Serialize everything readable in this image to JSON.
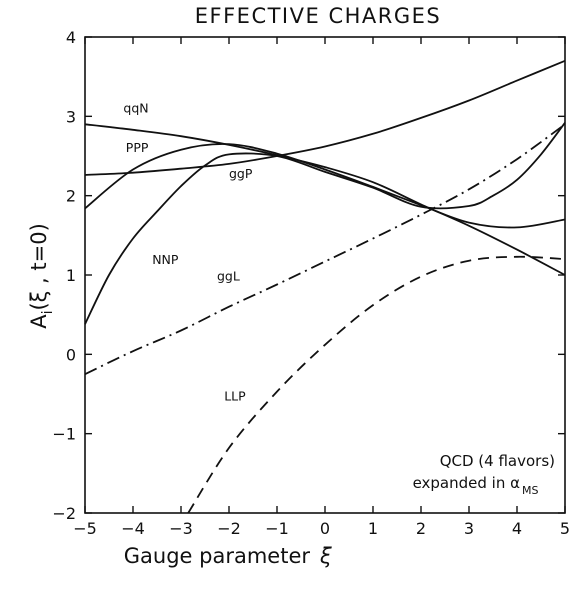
{
  "chart_data": {
    "type": "line",
    "title": "EFFECTIVE CHARGES",
    "xlabel_main": "Gauge parameter",
    "xlabel_symbol": "ξ",
    "ylabel_main": "A",
    "ylabel_sub": "i",
    "ylabel_args": "(ξ , t=0)",
    "xlim": [
      -5,
      5
    ],
    "ylim": [
      -2,
      4
    ],
    "xticks": [
      -5,
      -4,
      -3,
      -2,
      -1,
      0,
      1,
      2,
      3,
      4,
      5
    ],
    "yticks": [
      -2,
      -1,
      0,
      1,
      2,
      3,
      4
    ],
    "grid": false,
    "annotation": {
      "line1": "QCD (4 flavors)",
      "line2_main": "expanded in α",
      "line2_sub": "MS"
    },
    "series": [
      {
        "name": "qqN",
        "style": "solid",
        "x": [
          -5,
          -4,
          -3,
          -2,
          -1,
          0,
          1,
          2,
          3,
          4,
          5
        ],
        "y": [
          2.9,
          2.83,
          2.75,
          2.64,
          2.51,
          2.36,
          2.17,
          1.89,
          1.62,
          1.32,
          1.0
        ]
      },
      {
        "name": "PPP",
        "style": "solid",
        "x": [
          -5,
          -4,
          -3,
          -2,
          -1,
          0,
          1,
          2,
          3,
          4,
          5
        ],
        "y": [
          2.26,
          2.29,
          2.34,
          2.4,
          2.5,
          2.62,
          2.78,
          2.98,
          3.2,
          3.45,
          3.7
        ]
      },
      {
        "name": "ggP",
        "style": "solid",
        "x": [
          -5,
          -4,
          -3,
          -2,
          -1,
          0,
          1,
          2,
          3,
          4,
          5
        ],
        "y": [
          1.84,
          2.33,
          2.58,
          2.65,
          2.53,
          2.33,
          2.11,
          1.88,
          1.66,
          1.6,
          1.7
        ]
      },
      {
        "name": "NNP",
        "style": "solid",
        "x": [
          -5,
          -4.5,
          -4,
          -3.5,
          -3,
          -2.5,
          -2,
          -1,
          0,
          1,
          2,
          3,
          3.5,
          4,
          4.5,
          5
        ],
        "y": [
          0.38,
          1.0,
          1.46,
          1.8,
          2.12,
          2.38,
          2.52,
          2.5,
          2.3,
          2.1,
          1.86,
          1.87,
          2.0,
          2.2,
          2.52,
          2.92
        ]
      },
      {
        "name": "ggL",
        "style": "dashdot",
        "x": [
          -5,
          -4,
          -3,
          -2,
          -1,
          0,
          1,
          2,
          3,
          4,
          5
        ],
        "y": [
          -0.25,
          0.04,
          0.3,
          0.6,
          0.88,
          1.17,
          1.46,
          1.76,
          2.08,
          2.46,
          2.9
        ]
      },
      {
        "name": "LLP",
        "style": "dashed",
        "x": [
          -2.85,
          -2,
          -1,
          0,
          1,
          2,
          3,
          4,
          5
        ],
        "y": [
          -2.0,
          -1.18,
          -0.47,
          0.12,
          0.62,
          0.98,
          1.18,
          1.23,
          1.2
        ]
      }
    ],
    "labels": [
      {
        "text": "qqN",
        "x": -4.2,
        "y": 3.05
      },
      {
        "text": "PPP",
        "x": -4.15,
        "y": 2.55
      },
      {
        "text": "ggP",
        "x": -2.0,
        "y": 2.22
      },
      {
        "text": "NNP",
        "x": -3.6,
        "y": 1.14
      },
      {
        "text": "ggL",
        "x": -2.25,
        "y": 0.93
      },
      {
        "text": "LLP",
        "x": -2.1,
        "y": -0.58
      }
    ]
  }
}
